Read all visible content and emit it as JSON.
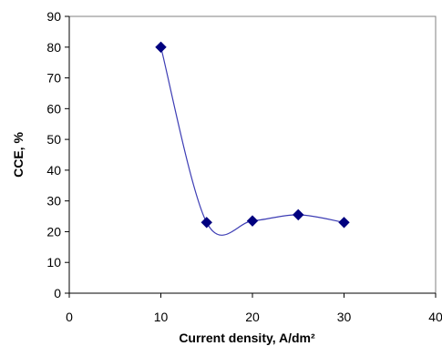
{
  "chart_data": {
    "type": "scatter",
    "title": "",
    "xlabel": "Current density, A/dm²",
    "ylabel": "CCE, %",
    "xlim": [
      0,
      40
    ],
    "ylim": [
      0,
      90
    ],
    "xticks": [
      0,
      10,
      20,
      30,
      40
    ],
    "yticks": [
      0,
      10,
      20,
      30,
      40,
      50,
      60,
      70,
      80,
      90
    ],
    "grid": false,
    "legend": "none",
    "series": [
      {
        "marker": "diamond",
        "smoothed_line": true,
        "color": "#00007f",
        "line_color": "#3c3cb4",
        "x": [
          10,
          15,
          20,
          25,
          30
        ],
        "y": [
          80,
          23,
          23.5,
          25.5,
          23
        ]
      }
    ]
  }
}
